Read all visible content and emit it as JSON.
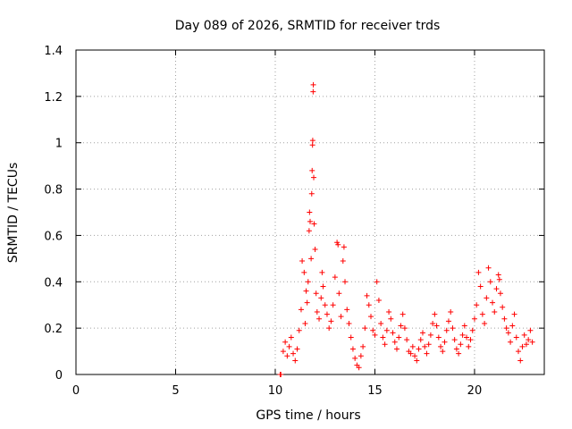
{
  "chart_data": {
    "type": "scatter",
    "title": "Day 089 of 2026, SRMTID for receiver trds",
    "xlabel": "GPS time / hours",
    "ylabel": "SRMTID / TECUs",
    "xlim": [
      0,
      23.5
    ],
    "ylim": [
      0,
      1.4
    ],
    "xticks": [
      0,
      5,
      10,
      15,
      20
    ],
    "xtick_labels": [
      "0",
      "5",
      "10",
      "15",
      "20"
    ],
    "yticks": [
      0,
      0.2,
      0.4,
      0.6,
      0.8,
      1.0,
      1.2,
      1.4
    ],
    "ytick_labels": [
      "0",
      "0.2",
      "0.4",
      "0.6",
      "0.8",
      "1",
      "1.2",
      "1.4"
    ],
    "grid": true,
    "marker": "plus",
    "color": "#ff0000",
    "series": [
      {
        "name": "SRMTID",
        "points": [
          [
            10.25,
            0.0
          ],
          [
            10.28,
            0.0
          ],
          [
            10.4,
            0.1
          ],
          [
            10.5,
            0.14
          ],
          [
            10.6,
            0.08
          ],
          [
            10.7,
            0.12
          ],
          [
            10.8,
            0.16
          ],
          [
            10.9,
            0.09
          ],
          [
            11.0,
            0.06
          ],
          [
            11.1,
            0.11
          ],
          [
            11.2,
            0.19
          ],
          [
            11.3,
            0.28
          ],
          [
            11.35,
            0.49
          ],
          [
            11.45,
            0.44
          ],
          [
            11.5,
            0.22
          ],
          [
            11.55,
            0.36
          ],
          [
            11.6,
            0.31
          ],
          [
            11.65,
            0.4
          ],
          [
            11.7,
            0.62
          ],
          [
            11.72,
            0.7
          ],
          [
            11.75,
            0.66
          ],
          [
            11.8,
            0.5
          ],
          [
            11.83,
            0.78
          ],
          [
            11.85,
            0.88
          ],
          [
            11.87,
            0.99
          ],
          [
            11.88,
            1.01
          ],
          [
            11.9,
            1.22
          ],
          [
            11.91,
            1.25
          ],
          [
            11.93,
            0.85
          ],
          [
            11.95,
            0.65
          ],
          [
            12.0,
            0.54
          ],
          [
            12.05,
            0.35
          ],
          [
            12.1,
            0.27
          ],
          [
            12.2,
            0.24
          ],
          [
            12.3,
            0.33
          ],
          [
            12.35,
            0.44
          ],
          [
            12.4,
            0.38
          ],
          [
            12.5,
            0.3
          ],
          [
            12.6,
            0.26
          ],
          [
            12.7,
            0.2
          ],
          [
            12.8,
            0.23
          ],
          [
            12.9,
            0.3
          ],
          [
            13.0,
            0.42
          ],
          [
            13.1,
            0.57
          ],
          [
            13.15,
            0.56
          ],
          [
            13.2,
            0.35
          ],
          [
            13.3,
            0.25
          ],
          [
            13.4,
            0.49
          ],
          [
            13.45,
            0.55
          ],
          [
            13.5,
            0.4
          ],
          [
            13.6,
            0.28
          ],
          [
            13.7,
            0.22
          ],
          [
            13.8,
            0.16
          ],
          [
            13.9,
            0.11
          ],
          [
            14.0,
            0.07
          ],
          [
            14.1,
            0.04
          ],
          [
            14.2,
            0.03
          ],
          [
            14.3,
            0.08
          ],
          [
            14.4,
            0.12
          ],
          [
            14.5,
            0.2
          ],
          [
            14.6,
            0.34
          ],
          [
            14.7,
            0.3
          ],
          [
            14.8,
            0.25
          ],
          [
            14.9,
            0.19
          ],
          [
            15.0,
            0.17
          ],
          [
            15.1,
            0.4
          ],
          [
            15.2,
            0.32
          ],
          [
            15.3,
            0.22
          ],
          [
            15.4,
            0.16
          ],
          [
            15.5,
            0.13
          ],
          [
            15.6,
            0.19
          ],
          [
            15.7,
            0.27
          ],
          [
            15.8,
            0.24
          ],
          [
            15.9,
            0.18
          ],
          [
            16.0,
            0.14
          ],
          [
            16.1,
            0.11
          ],
          [
            16.2,
            0.16
          ],
          [
            16.3,
            0.21
          ],
          [
            16.4,
            0.26
          ],
          [
            16.5,
            0.2
          ],
          [
            16.6,
            0.15
          ],
          [
            16.7,
            0.1
          ],
          [
            16.8,
            0.09
          ],
          [
            16.9,
            0.12
          ],
          [
            17.0,
            0.08
          ],
          [
            17.1,
            0.06
          ],
          [
            17.2,
            0.11
          ],
          [
            17.3,
            0.15
          ],
          [
            17.4,
            0.18
          ],
          [
            17.5,
            0.12
          ],
          [
            17.6,
            0.09
          ],
          [
            17.7,
            0.13
          ],
          [
            17.8,
            0.17
          ],
          [
            17.9,
            0.22
          ],
          [
            18.0,
            0.26
          ],
          [
            18.1,
            0.21
          ],
          [
            18.2,
            0.16
          ],
          [
            18.3,
            0.12
          ],
          [
            18.4,
            0.1
          ],
          [
            18.5,
            0.14
          ],
          [
            18.6,
            0.19
          ],
          [
            18.7,
            0.23
          ],
          [
            18.8,
            0.27
          ],
          [
            18.9,
            0.2
          ],
          [
            19.0,
            0.15
          ],
          [
            19.1,
            0.11
          ],
          [
            19.2,
            0.09
          ],
          [
            19.3,
            0.13
          ],
          [
            19.4,
            0.17
          ],
          [
            19.5,
            0.21
          ],
          [
            19.6,
            0.16
          ],
          [
            19.7,
            0.12
          ],
          [
            19.8,
            0.15
          ],
          [
            19.9,
            0.19
          ],
          [
            20.0,
            0.24
          ],
          [
            20.1,
            0.3
          ],
          [
            20.2,
            0.44
          ],
          [
            20.3,
            0.38
          ],
          [
            20.4,
            0.26
          ],
          [
            20.5,
            0.22
          ],
          [
            20.6,
            0.33
          ],
          [
            20.7,
            0.46
          ],
          [
            20.8,
            0.4
          ],
          [
            20.9,
            0.31
          ],
          [
            21.0,
            0.27
          ],
          [
            21.1,
            0.37
          ],
          [
            21.2,
            0.43
          ],
          [
            21.25,
            0.41
          ],
          [
            21.3,
            0.35
          ],
          [
            21.4,
            0.29
          ],
          [
            21.5,
            0.24
          ],
          [
            21.6,
            0.2
          ],
          [
            21.7,
            0.18
          ],
          [
            21.8,
            0.14
          ],
          [
            21.9,
            0.21
          ],
          [
            22.0,
            0.26
          ],
          [
            22.1,
            0.16
          ],
          [
            22.2,
            0.1
          ],
          [
            22.3,
            0.06
          ],
          [
            22.4,
            0.12
          ],
          [
            22.5,
            0.17
          ],
          [
            22.6,
            0.13
          ],
          [
            22.7,
            0.15
          ],
          [
            22.8,
            0.19
          ],
          [
            22.9,
            0.14
          ]
        ]
      }
    ]
  }
}
